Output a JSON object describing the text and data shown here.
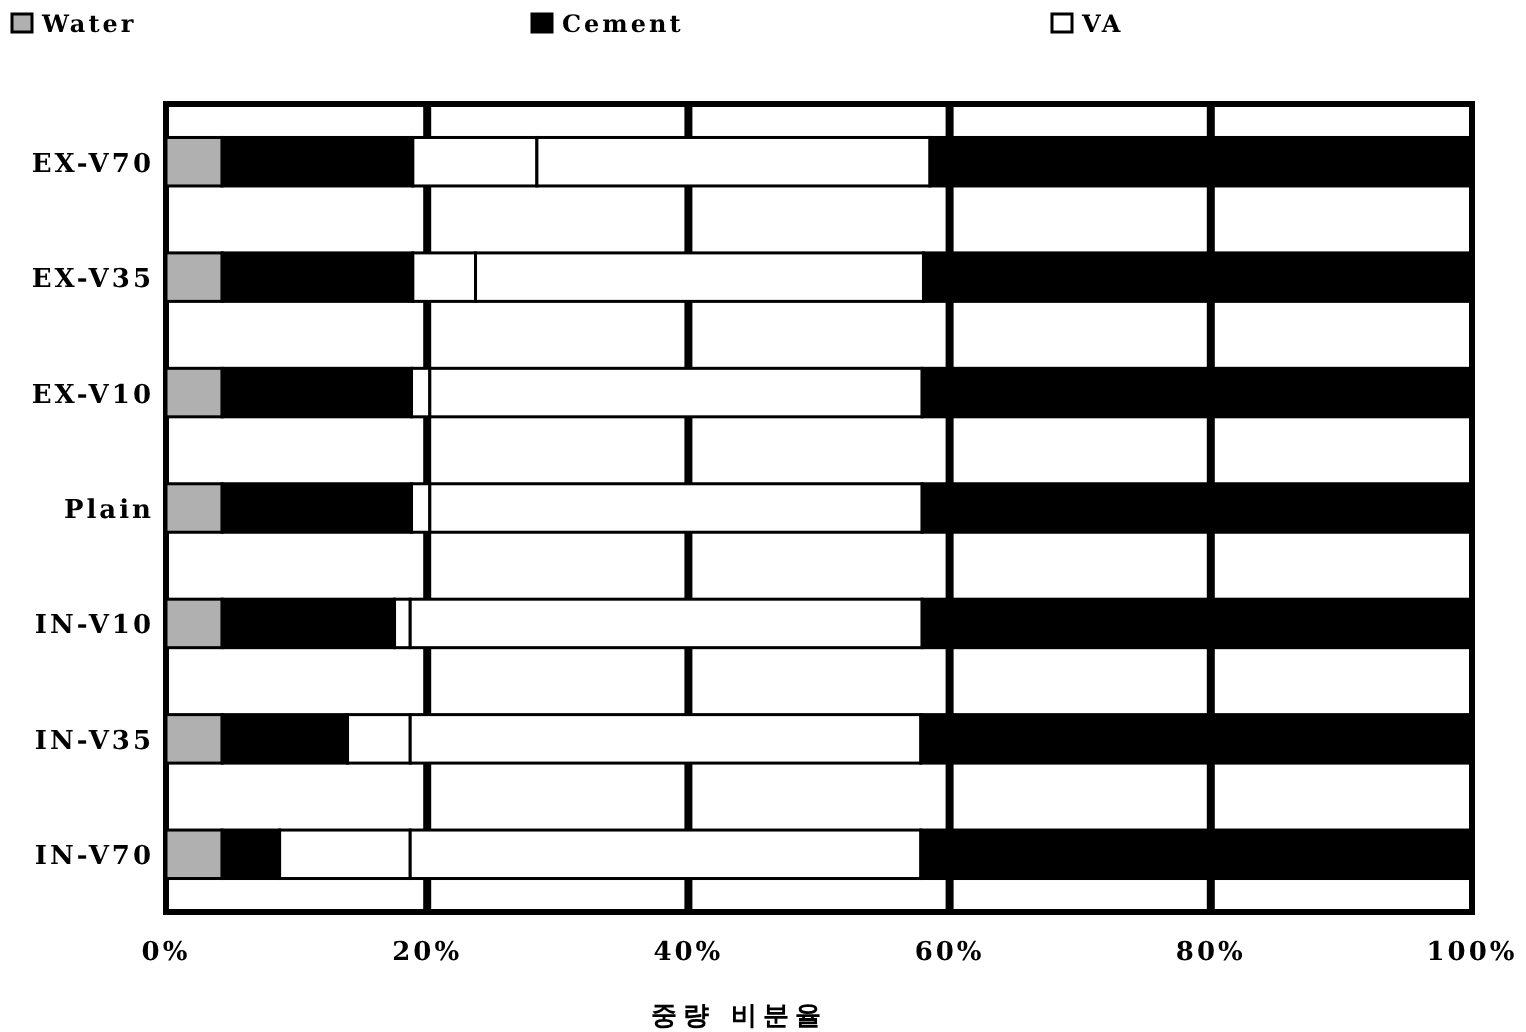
{
  "chart_data": {
    "type": "bar",
    "orientation": "horizontal",
    "stacked": true,
    "xlabel": "중량 비분율",
    "categories": [
      "EX-V70",
      "EX-V35",
      "EX-V10",
      "Plain",
      "IN-V10",
      "IN-V35",
      "IN-V70"
    ],
    "series": [
      {
        "name": "Water",
        "color": "#b0b0b0",
        "values": [
          4.3,
          4.3,
          4.3,
          4.3,
          4.3,
          4.3,
          4.3
        ]
      },
      {
        "name": "Cement",
        "color": "#000000",
        "values": [
          14.6,
          14.6,
          14.5,
          14.5,
          13.2,
          9.6,
          4.4
        ]
      },
      {
        "name": "VA",
        "color": "#ffffff",
        "values": [
          9.5,
          4.8,
          1.4,
          1.4,
          1.2,
          4.8,
          10.0
        ]
      },
      {
        "color": "#ffffff",
        "values": [
          30.1,
          34.3,
          37.7,
          37.7,
          39.2,
          39.1,
          39.1
        ]
      },
      {
        "color": "#000000",
        "values": [
          41.5,
          42.0,
          42.1,
          42.1,
          42.1,
          42.2,
          42.2
        ]
      }
    ],
    "xlim": [
      0,
      100
    ],
    "xticks": [
      {
        "value": 0,
        "label": "0%"
      },
      {
        "value": 20,
        "label": "20%"
      },
      {
        "value": 40,
        "label": "40%"
      },
      {
        "value": 60,
        "label": "60%"
      },
      {
        "value": 80,
        "label": "80%"
      },
      {
        "value": 100,
        "label": "100%"
      }
    ],
    "grid": "x",
    "legend": "top"
  }
}
